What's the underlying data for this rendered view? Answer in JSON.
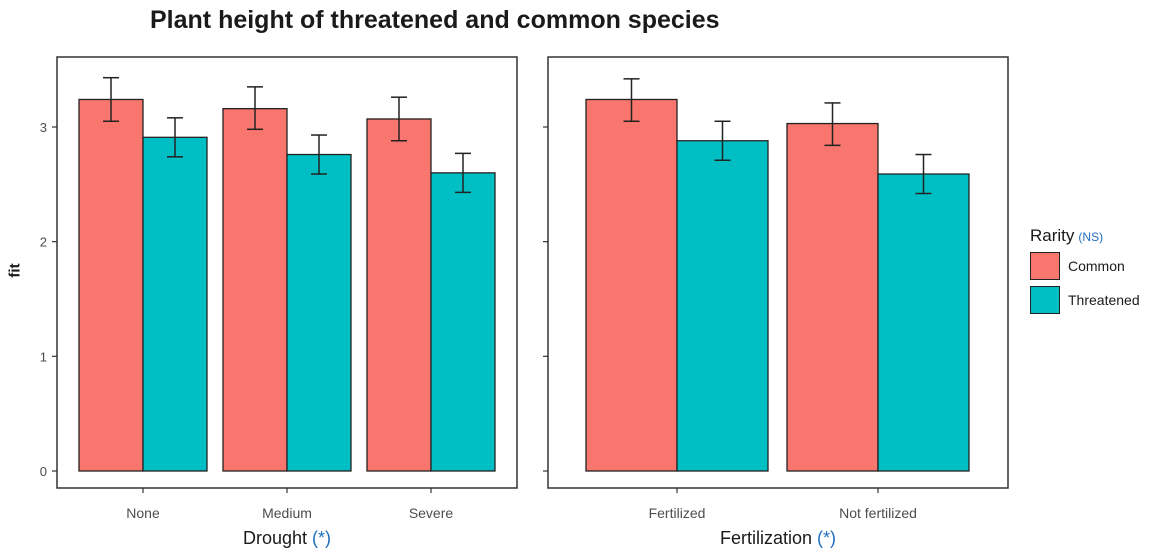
{
  "title": "Plant height of threatened and common species",
  "ylabel": "fit",
  "colors": {
    "common": "#F8766D",
    "threatened": "#00BFC4",
    "note": "#1f6fbf"
  },
  "legend": {
    "title": "Rarity",
    "note": "(NS)",
    "items": [
      {
        "label": "Common",
        "color": "#F8766D"
      },
      {
        "label": "Threatened",
        "color": "#00BFC4"
      }
    ]
  },
  "chart_data": [
    {
      "type": "bar",
      "xlabel": "Drought",
      "xlabel_note": "(*)",
      "ylabel": "fit",
      "ylim": [
        0,
        3.5
      ],
      "yticks": [
        0,
        1,
        2,
        3
      ],
      "grid": false,
      "categories": [
        "None",
        "Medium",
        "Severe"
      ],
      "series": [
        {
          "name": "Common",
          "values": [
            3.24,
            3.16,
            3.07
          ],
          "lower": [
            3.05,
            2.98,
            2.88
          ],
          "upper": [
            3.43,
            3.35,
            3.26
          ]
        },
        {
          "name": "Threatened",
          "values": [
            2.91,
            2.76,
            2.6
          ],
          "lower": [
            2.74,
            2.59,
            2.43
          ],
          "upper": [
            3.08,
            2.93,
            2.77
          ]
        }
      ]
    },
    {
      "type": "bar",
      "xlabel": "Fertilization",
      "xlabel_note": "(*)",
      "ylim": [
        0,
        3.5
      ],
      "yticks": [
        0,
        1,
        2,
        3
      ],
      "grid": false,
      "categories": [
        "Fertilized",
        "Not fertilized"
      ],
      "series": [
        {
          "name": "Common",
          "values": [
            3.24,
            3.03
          ],
          "lower": [
            3.05,
            2.84
          ],
          "upper": [
            3.42,
            3.21
          ]
        },
        {
          "name": "Threatened",
          "values": [
            2.88,
            2.59
          ],
          "lower": [
            2.71,
            2.42
          ],
          "upper": [
            3.05,
            2.76
          ]
        }
      ]
    }
  ]
}
